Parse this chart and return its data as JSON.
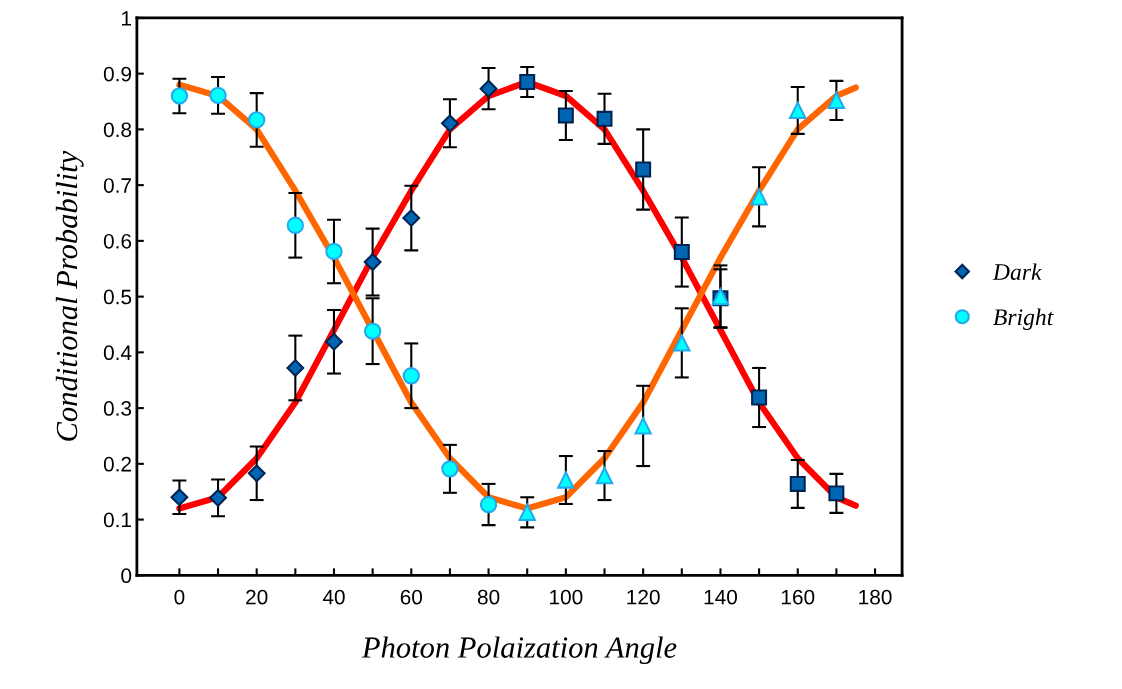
{
  "chart_data": {
    "type": "scatter",
    "xlabel": "Photon Polaization Angle",
    "ylabel": "Conditional Probability",
    "xlim": [
      -11,
      187
    ],
    "ylim": [
      0,
      1
    ],
    "xticks": [
      0,
      {
        "value": 10,
        "label": null
      },
      20,
      {
        "value": 30,
        "label": null
      },
      40,
      {
        "value": 50,
        "label": null
      },
      60,
      {
        "value": 70,
        "label": null
      },
      80,
      {
        "value": 90,
        "label": null
      },
      100,
      {
        "value": 110,
        "label": null
      },
      120,
      {
        "value": 130,
        "label": null
      },
      140,
      {
        "value": 150,
        "label": null
      },
      160,
      {
        "value": 170,
        "label": null
      },
      180
    ],
    "yticks": [
      0,
      0.1,
      0.2,
      0.3,
      0.4,
      0.5,
      0.6,
      0.7,
      0.8,
      0.9,
      1
    ],
    "grid": false,
    "legend": "right",
    "series": [
      {
        "type": "line",
        "color": "#ff0000",
        "marker": "none",
        "x": [
          0,
          10,
          20,
          30,
          40,
          50,
          60,
          70,
          80,
          90,
          100,
          110,
          120,
          130,
          140,
          150,
          160,
          170,
          175
        ],
        "values": [
          0.12,
          0.14,
          0.21,
          0.31,
          0.44,
          0.57,
          0.69,
          0.8,
          0.86,
          0.885,
          0.86,
          0.8,
          0.69,
          0.57,
          0.44,
          0.31,
          0.21,
          0.14,
          0.125
        ]
      },
      {
        "type": "line",
        "color": "#ff6600",
        "marker": "none",
        "x": [
          0,
          10,
          20,
          30,
          40,
          50,
          60,
          70,
          80,
          90,
          100,
          110,
          120,
          130,
          140,
          150,
          160,
          170,
          175
        ],
        "values": [
          0.88,
          0.86,
          0.8,
          0.69,
          0.57,
          0.44,
          0.31,
          0.21,
          0.14,
          0.12,
          0.14,
          0.21,
          0.31,
          0.44,
          0.57,
          0.69,
          0.8,
          0.86,
          0.875
        ]
      },
      {
        "name": "Dark",
        "color": "#0066b3",
        "marker": "diamond",
        "x": [
          0,
          10,
          20,
          30,
          40,
          50,
          60,
          70,
          80
        ],
        "values": [
          0.14,
          0.139,
          0.183,
          0.372,
          0.419,
          0.562,
          0.641,
          0.811,
          0.873
        ],
        "errors": [
          0.03,
          0.033,
          0.048,
          0.058,
          0.057,
          0.06,
          0.058,
          0.043,
          0.037
        ]
      },
      {
        "name": "Bright",
        "color": "#00ffff",
        "marker": "circle",
        "x": [
          0,
          10,
          20,
          30,
          40,
          50,
          60,
          70,
          80
        ],
        "values": [
          0.86,
          0.861,
          0.817,
          0.628,
          0.581,
          0.438,
          0.358,
          0.191,
          0.127
        ],
        "errors": [
          0.031,
          0.033,
          0.048,
          0.058,
          0.057,
          0.059,
          0.058,
          0.043,
          0.037
        ]
      },
      {
        "color": "#0066b3",
        "marker": "square",
        "x": [
          90,
          100,
          110,
          120,
          130,
          140,
          150,
          160,
          170
        ],
        "values": [
          0.885,
          0.825,
          0.819,
          0.728,
          0.58,
          0.497,
          0.319,
          0.164,
          0.147
        ],
        "errors": [
          0.027,
          0.044,
          0.045,
          0.072,
          0.062,
          0.052,
          0.053,
          0.043,
          0.035
        ]
      },
      {
        "color": "#00ffff",
        "marker": "triangle",
        "x": [
          90,
          100,
          110,
          120,
          130,
          140,
          150,
          160,
          170
        ],
        "values": [
          0.113,
          0.171,
          0.179,
          0.268,
          0.417,
          0.5,
          0.679,
          0.834,
          0.852
        ],
        "errors": [
          0.027,
          0.043,
          0.044,
          0.072,
          0.062,
          0.056,
          0.053,
          0.042,
          0.035
        ]
      }
    ]
  }
}
